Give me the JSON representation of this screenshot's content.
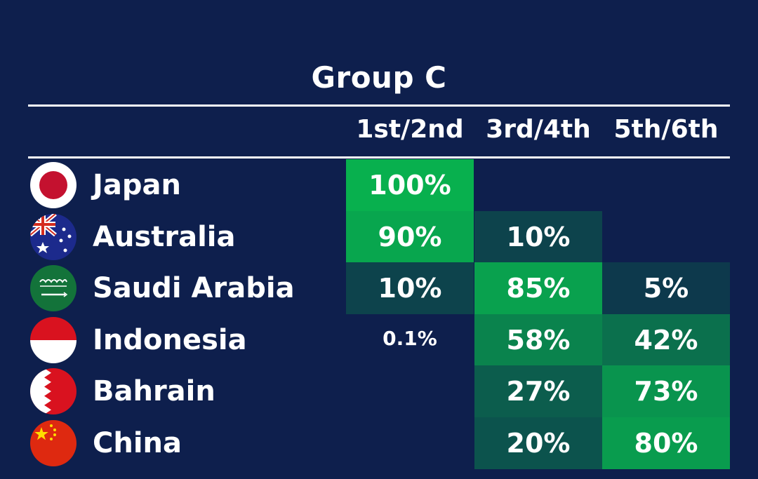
{
  "chart_data": {
    "type": "heatmap",
    "title": "Group C",
    "columns": [
      "1st/2nd",
      "3rd/4th",
      "5th/6th"
    ],
    "rows": [
      {
        "team": "Japan",
        "flag_icon": "japan-flag-icon",
        "values": [
          "100%",
          "",
          ""
        ]
      },
      {
        "team": "Australia",
        "flag_icon": "australia-flag-icon",
        "values": [
          "90%",
          "10%",
          ""
        ]
      },
      {
        "team": "Saudi Arabia",
        "flag_icon": "saudi-arabia-flag-icon",
        "values": [
          "10%",
          "85%",
          "5%"
        ]
      },
      {
        "team": "Indonesia",
        "flag_icon": "indonesia-flag-icon",
        "values": [
          "0.1%",
          "58%",
          "42%"
        ]
      },
      {
        "team": "Bahrain",
        "flag_icon": "bahrain-flag-icon",
        "values": [
          "",
          "27%",
          "73%"
        ]
      },
      {
        "team": "China",
        "flag_icon": "china-flag-icon",
        "values": [
          "",
          "20%",
          "80%"
        ]
      }
    ]
  },
  "colors": {
    "background": "#0e1f4d",
    "text": "#ffffff",
    "low": "#0e2b4c",
    "high": "#08b04e"
  }
}
